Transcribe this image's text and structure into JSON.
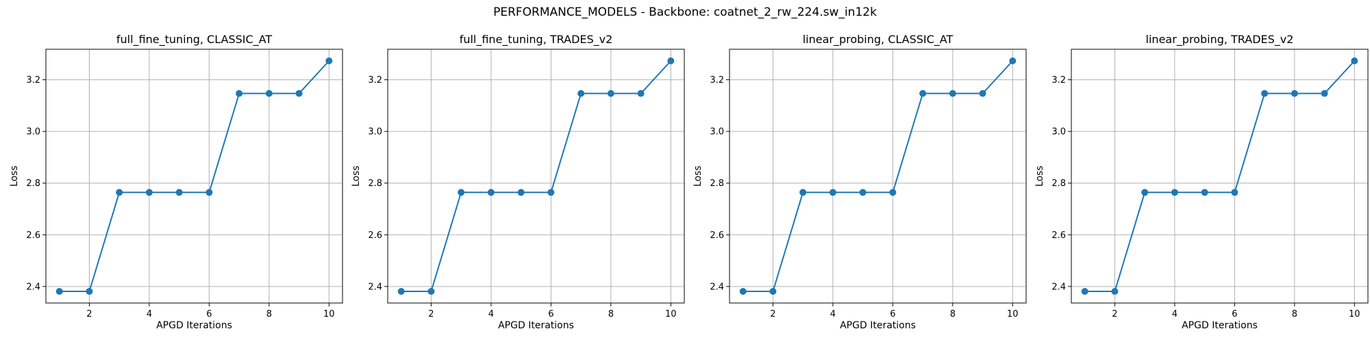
{
  "figure": {
    "suptitle": "PERFORMANCE_MODELS - Backbone: coatnet_2_rw_224.sw_in12k"
  },
  "style": {
    "line_color": "#1f77b4",
    "grid_color": "#b0b0b0",
    "axes_color": "#000000"
  },
  "chart_data": [
    {
      "type": "line",
      "title": "full_fine_tuning, CLASSIC_AT",
      "xlabel": "APGD Iterations",
      "ylabel": "Loss",
      "x": [
        1,
        2,
        3,
        4,
        5,
        6,
        7,
        8,
        9,
        10
      ],
      "y": [
        2.381,
        2.381,
        2.764,
        2.764,
        2.764,
        2.764,
        3.147,
        3.147,
        3.147,
        3.273
      ],
      "xticks": [
        2,
        4,
        6,
        8,
        10
      ],
      "yticks": [
        2.4,
        2.6,
        2.8,
        3.0,
        3.2
      ],
      "ytick_labels": [
        "2.4",
        "2.6",
        "2.8",
        "3.0",
        "3.2"
      ],
      "xlim": [
        0.55,
        10.45
      ],
      "ylim": [
        2.336,
        3.318
      ],
      "grid": true,
      "marker": "circle"
    },
    {
      "type": "line",
      "title": "full_fine_tuning, TRADES_v2",
      "xlabel": "APGD Iterations",
      "ylabel": "Loss",
      "x": [
        1,
        2,
        3,
        4,
        5,
        6,
        7,
        8,
        9,
        10
      ],
      "y": [
        2.381,
        2.381,
        2.764,
        2.764,
        2.764,
        2.764,
        3.147,
        3.147,
        3.147,
        3.273
      ],
      "xticks": [
        2,
        4,
        6,
        8,
        10
      ],
      "yticks": [
        2.4,
        2.6,
        2.8,
        3.0,
        3.2
      ],
      "ytick_labels": [
        "2.4",
        "2.6",
        "2.8",
        "3.0",
        "3.2"
      ],
      "xlim": [
        0.55,
        10.45
      ],
      "ylim": [
        2.336,
        3.318
      ],
      "grid": true,
      "marker": "circle"
    },
    {
      "type": "line",
      "title": "linear_probing, CLASSIC_AT",
      "xlabel": "APGD Iterations",
      "ylabel": "Loss",
      "x": [
        1,
        2,
        3,
        4,
        5,
        6,
        7,
        8,
        9,
        10
      ],
      "y": [
        2.381,
        2.381,
        2.764,
        2.764,
        2.764,
        2.764,
        3.147,
        3.147,
        3.147,
        3.273
      ],
      "xticks": [
        2,
        4,
        6,
        8,
        10
      ],
      "yticks": [
        2.4,
        2.6,
        2.8,
        3.0,
        3.2
      ],
      "ytick_labels": [
        "2.4",
        "2.6",
        "2.8",
        "3.0",
        "3.2"
      ],
      "xlim": [
        0.55,
        10.45
      ],
      "ylim": [
        2.336,
        3.318
      ],
      "grid": true,
      "marker": "circle"
    },
    {
      "type": "line",
      "title": "linear_probing, TRADES_v2",
      "xlabel": "APGD Iterations",
      "ylabel": "Loss",
      "x": [
        1,
        2,
        3,
        4,
        5,
        6,
        7,
        8,
        9,
        10
      ],
      "y": [
        2.381,
        2.381,
        2.764,
        2.764,
        2.764,
        2.764,
        3.147,
        3.147,
        3.147,
        3.273
      ],
      "xticks": [
        2,
        4,
        6,
        8,
        10
      ],
      "yticks": [
        2.4,
        2.6,
        2.8,
        3.0,
        3.2
      ],
      "ytick_labels": [
        "2.4",
        "2.6",
        "2.8",
        "3.0",
        "3.2"
      ],
      "xlim": [
        0.55,
        10.45
      ],
      "ylim": [
        2.336,
        3.318
      ],
      "grid": true,
      "marker": "circle"
    }
  ]
}
